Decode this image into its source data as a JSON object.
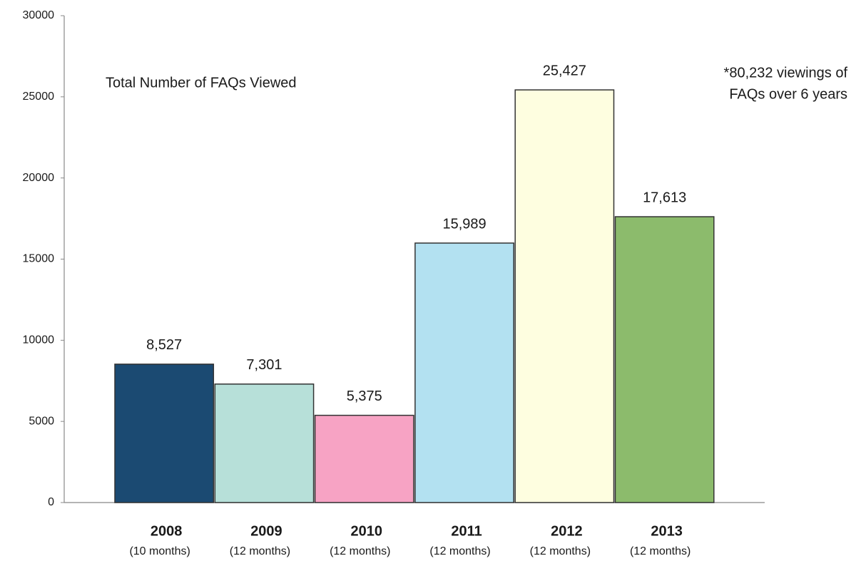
{
  "chart_data": {
    "type": "bar",
    "title": "Total Number of FAQs Viewed",
    "annotation": [
      "*80,232 viewings of",
      "FAQs over 6 years"
    ],
    "categories": [
      "2008",
      "2009",
      "2010",
      "2011",
      "2012",
      "2013"
    ],
    "category_notes": [
      "(10 months)",
      "(12 months)",
      "(12 months)",
      "(12 months)",
      "(12 months)",
      "(12 months)"
    ],
    "values": [
      8527,
      7301,
      5375,
      15989,
      25427,
      17613
    ],
    "value_labels": [
      "8,527",
      "7,301",
      "5,375",
      "15,989",
      "25,427",
      "17,613"
    ],
    "colors": [
      "#1b4a72",
      "#b7e0d9",
      "#f7a3c4",
      "#b3e1f1",
      "#fefee0",
      "#8cbb6c"
    ],
    "ylim": [
      0,
      30000
    ],
    "yticks": [
      0,
      5000,
      10000,
      15000,
      20000,
      25000,
      30000
    ],
    "grid": false
  }
}
